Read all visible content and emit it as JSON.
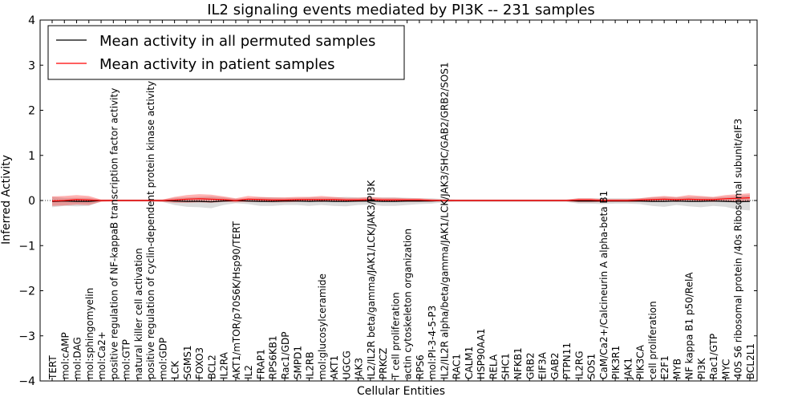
{
  "chart_data": {
    "type": "line",
    "title": "IL2 signaling events mediated by PI3K -- 231 samples",
    "xlabel": "Cellular Entities",
    "ylabel": "Inferred Activity",
    "ylim": [
      -4,
      4
    ],
    "yticks": [
      -4,
      -3,
      -2,
      -1,
      0,
      1,
      2,
      3,
      4
    ],
    "ytick_labels": [
      "−4",
      "−3",
      "−2",
      "−1",
      "0",
      "1",
      "2",
      "3",
      "4"
    ],
    "grid": false,
    "legend_position": "top-left",
    "categories": [
      "TERT",
      "mol:cAMP",
      "mol:DAG",
      "mol:sphingomyelin",
      "mol:Ca2+",
      "positive regulation of NF-kappaB transcription factor activity",
      "mol:GTP",
      "natural killer cell activation",
      "positive regulation of cyclin-dependent protein kinase activity",
      "mol:GDP",
      "LCK",
      "SGMS1",
      "FOXO3",
      "BCL2",
      "IL2RA",
      "AKT1/mTOR/p70S6K/Hsp90/TERT",
      "IL2",
      "FRAP1",
      "RPS6KB1",
      "Rac1/GDP",
      "SMPD1",
      "IL2RB",
      "mol:glucosylceramide",
      "AKT1",
      "UGCG",
      "JAK3",
      "IL2/IL2R beta/gamma/JAK1/LCK/JAK3/PI3K",
      "PRKCZ",
      "T cell proliferation",
      "actin cytoskeleton organization",
      "RPS6",
      "mol:PI-3-4-5-P3",
      "IL2/IL2R alpha/beta/gamma/JAK1/LCK/JAK3/SHC/GAB2/GRB2/SOS1",
      "RAC1",
      "CALM1",
      "HSP90AA1",
      "RELA",
      "SHC1",
      "NFKB1",
      "GRB2",
      "EIF3A",
      "GAB2",
      "PTPN11",
      "IL2RG",
      "SOS1",
      "CaM/Ca2+/Calcineurin A alpha-beta B1",
      "PIK3R1",
      "JAK1",
      "PIK3CA",
      "cell proliferation",
      "E2F1",
      "MYB",
      "NF kappa B1 p50/RelA",
      "PI3K",
      "Rac1/GTP",
      "MYC",
      "40S S6 ribosomal protein /40s Ribosomal subunit/eIF3",
      "BCL2L1"
    ],
    "series": [
      {
        "name": "Mean activity in all permuted samples",
        "color": "#000000",
        "values": [
          -0.02,
          -0.01,
          -0.02,
          -0.02,
          0.0,
          0.0,
          0.0,
          0.0,
          0.0,
          0.0,
          -0.01,
          -0.02,
          -0.02,
          -0.03,
          -0.01,
          0.0,
          -0.01,
          -0.02,
          -0.02,
          -0.01,
          -0.01,
          -0.02,
          -0.01,
          -0.02,
          -0.02,
          -0.01,
          -0.01,
          -0.02,
          -0.02,
          -0.01,
          -0.01,
          -0.01,
          0.0,
          0.0,
          0.0,
          0.0,
          0.0,
          0.0,
          0.0,
          0.0,
          0.0,
          0.0,
          0.0,
          -0.01,
          -0.01,
          -0.01,
          -0.01,
          -0.01,
          -0.01,
          -0.02,
          -0.02,
          -0.01,
          -0.02,
          -0.02,
          -0.01,
          -0.02,
          -0.03,
          -0.02
        ],
        "band_low": [
          -0.15,
          -0.12,
          -0.13,
          -0.12,
          -0.02,
          -0.02,
          -0.02,
          -0.02,
          -0.02,
          -0.03,
          -0.1,
          -0.14,
          -0.15,
          -0.17,
          -0.1,
          -0.06,
          -0.08,
          -0.12,
          -0.12,
          -0.1,
          -0.1,
          -0.12,
          -0.1,
          -0.12,
          -0.13,
          -0.1,
          -0.09,
          -0.12,
          -0.12,
          -0.1,
          -0.08,
          -0.07,
          -0.04,
          -0.03,
          -0.03,
          -0.03,
          -0.03,
          -0.03,
          -0.03,
          -0.03,
          -0.03,
          -0.03,
          -0.03,
          -0.07,
          -0.07,
          -0.08,
          -0.07,
          -0.07,
          -0.08,
          -0.12,
          -0.14,
          -0.1,
          -0.13,
          -0.15,
          -0.12,
          -0.14,
          -0.2,
          -0.22
        ],
        "band_high": [
          0.08,
          0.06,
          0.06,
          0.06,
          0.02,
          0.02,
          0.02,
          0.02,
          0.02,
          0.02,
          0.06,
          0.07,
          0.08,
          0.09,
          0.07,
          0.04,
          0.05,
          0.07,
          0.07,
          0.06,
          0.06,
          0.07,
          0.07,
          0.07,
          0.08,
          0.07,
          0.06,
          0.07,
          0.07,
          0.06,
          0.05,
          0.05,
          0.03,
          0.02,
          0.02,
          0.02,
          0.02,
          0.02,
          0.02,
          0.02,
          0.02,
          0.02,
          0.02,
          0.05,
          0.05,
          0.05,
          0.05,
          0.05,
          0.05,
          0.07,
          0.08,
          0.07,
          0.08,
          0.08,
          0.07,
          0.08,
          0.1,
          0.12
        ]
      },
      {
        "name": "Mean activity in patient samples",
        "color": "#ff0000",
        "values": [
          -0.01,
          0.0,
          0.02,
          0.01,
          0.0,
          0.0,
          0.0,
          0.0,
          0.0,
          0.0,
          0.01,
          0.03,
          0.04,
          0.03,
          0.02,
          0.0,
          0.03,
          0.02,
          0.01,
          0.01,
          0.02,
          0.02,
          0.02,
          0.02,
          0.01,
          0.01,
          0.02,
          0.01,
          0.01,
          0.01,
          0.01,
          0.0,
          0.0,
          0.0,
          0.0,
          0.0,
          0.0,
          0.0,
          0.0,
          0.0,
          0.0,
          0.0,
          0.0,
          0.01,
          0.01,
          0.0,
          0.0,
          0.0,
          0.01,
          0.02,
          0.03,
          0.02,
          0.03,
          0.02,
          0.02,
          0.04,
          0.05,
          0.06
        ],
        "band_low": [
          -0.12,
          -0.11,
          -0.09,
          -0.1,
          -0.03,
          -0.02,
          -0.02,
          -0.02,
          -0.02,
          -0.03,
          -0.05,
          -0.05,
          -0.04,
          -0.05,
          -0.03,
          -0.04,
          -0.03,
          -0.03,
          -0.04,
          -0.04,
          -0.03,
          -0.02,
          -0.03,
          -0.02,
          -0.03,
          -0.03,
          -0.02,
          -0.03,
          -0.03,
          -0.03,
          -0.03,
          -0.02,
          -0.02,
          -0.02,
          -0.02,
          -0.02,
          -0.02,
          -0.02,
          -0.02,
          -0.02,
          -0.02,
          -0.02,
          -0.02,
          -0.04,
          -0.04,
          -0.03,
          -0.03,
          -0.03,
          -0.03,
          -0.03,
          -0.02,
          -0.03,
          -0.02,
          -0.02,
          -0.03,
          -0.01,
          -0.02,
          -0.01
        ],
        "band_high": [
          0.09,
          0.1,
          0.12,
          0.1,
          0.02,
          0.02,
          0.02,
          0.02,
          0.02,
          0.02,
          0.08,
          0.12,
          0.14,
          0.13,
          0.09,
          0.05,
          0.1,
          0.08,
          0.07,
          0.07,
          0.08,
          0.08,
          0.1,
          0.08,
          0.06,
          0.06,
          0.08,
          0.06,
          0.06,
          0.05,
          0.05,
          0.03,
          0.02,
          0.02,
          0.02,
          0.02,
          0.02,
          0.02,
          0.02,
          0.02,
          0.02,
          0.02,
          0.02,
          0.05,
          0.05,
          0.03,
          0.03,
          0.03,
          0.05,
          0.08,
          0.1,
          0.08,
          0.12,
          0.1,
          0.08,
          0.12,
          0.14,
          0.16
        ]
      }
    ]
  }
}
